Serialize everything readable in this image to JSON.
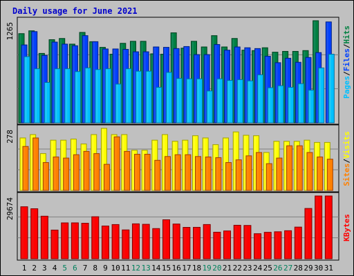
{
  "title": "Daily usage for June 2021",
  "colors": {
    "title": "#0000cc",
    "hits": "#008040",
    "hits_light": "#1c8a66",
    "hits_edge": "#004020",
    "files": "#0040ff",
    "files_light": "#2a58e8",
    "files_edge": "#002080",
    "pages": "#00c0ff",
    "pages_light": "#33ccee",
    "pages_edge": "#0070a0",
    "visits": "#ffff00",
    "visits_light": "#ffff40",
    "visits_edge": "#a0a000",
    "sites": "#ff8000",
    "sites_light": "#ff9010",
    "sites_edge": "#a04000",
    "kbytes": "#ff0000",
    "kbytes_light": "#ee1010",
    "kbytes_edge": "#800000",
    "weekend_day": "#00805c",
    "workday": "#000000",
    "panel_bg": "#c0c0c0",
    "grid": "#808080"
  },
  "days": [
    "1",
    "2",
    "3",
    "4",
    "5",
    "6",
    "7",
    "8",
    "9",
    "10",
    "11",
    "12",
    "13",
    "14",
    "15",
    "16",
    "17",
    "18",
    "19",
    "20",
    "21",
    "22",
    "23",
    "24",
    "25",
    "26",
    "27",
    "28",
    "29",
    "30",
    "31"
  ],
  "weekend_days": [
    "5",
    "6",
    "12",
    "13",
    "19",
    "20",
    "26",
    "27"
  ],
  "legend": {
    "usage_panel": [
      "Pages",
      "/",
      "Files",
      "/",
      "Hits"
    ],
    "sites_panel": [
      "Sites",
      "/",
      "Visits"
    ],
    "kbytes_panel": [
      "KBytes"
    ]
  },
  "chart_data": [
    {
      "type": "bar",
      "title": "Daily usage for June 2021",
      "panel": "hits-files-pages",
      "categories": [
        "1",
        "2",
        "3",
        "4",
        "5",
        "6",
        "7",
        "8",
        "9",
        "10",
        "11",
        "12",
        "13",
        "14",
        "15",
        "16",
        "17",
        "18",
        "19",
        "20",
        "21",
        "22",
        "23",
        "24",
        "25",
        "26",
        "27",
        "28",
        "29",
        "30",
        "31"
      ],
      "ymax_label": "1265",
      "ylim": [
        0,
        1265
      ],
      "grid": true,
      "series": [
        {
          "name": "Hits",
          "values": [
            1105,
            1140,
            860,
            1030,
            1045,
            975,
            1120,
            1005,
            935,
            850,
            985,
            1010,
            1010,
            855,
            850,
            1115,
            925,
            1010,
            940,
            1080,
            940,
            1045,
            900,
            895,
            930,
            875,
            885,
            885,
            895,
            1265,
            null
          ]
        },
        {
          "name": "Files",
          "values": [
            965,
            1130,
            835,
            1000,
            975,
            955,
            1080,
            1005,
            915,
            915,
            910,
            880,
            880,
            940,
            935,
            920,
            945,
            845,
            845,
            970,
            900,
            940,
            930,
            920,
            825,
            745,
            800,
            750,
            810,
            870,
            1250
          ]
        },
        {
          "name": "Pages",
          "values": [
            820,
            670,
            500,
            670,
            670,
            635,
            680,
            660,
            670,
            480,
            670,
            640,
            640,
            440,
            625,
            550,
            545,
            545,
            395,
            545,
            525,
            535,
            520,
            595,
            435,
            460,
            440,
            485,
            405,
            680,
            850
          ]
        }
      ]
    },
    {
      "type": "bar",
      "panel": "visits-sites",
      "categories": [
        "1",
        "2",
        "3",
        "4",
        "5",
        "6",
        "7",
        "8",
        "9",
        "10",
        "11",
        "12",
        "13",
        "14",
        "15",
        "16",
        "17",
        "18",
        "19",
        "20",
        "21",
        "22",
        "23",
        "24",
        "25",
        "26",
        "27",
        "28",
        "29",
        "30",
        "31"
      ],
      "ymax_label": "278",
      "ylim": [
        0,
        278
      ],
      "grid": true,
      "series": [
        {
          "name": "Visits",
          "values": [
            235,
            250,
            165,
            225,
            225,
            230,
            208,
            250,
            278,
            250,
            250,
            180,
            180,
            225,
            250,
            220,
            225,
            245,
            235,
            205,
            235,
            262,
            247,
            245,
            170,
            220,
            220,
            220,
            225,
            215,
            215
          ]
        },
        {
          "name": "Sites",
          "values": [
            197,
            235,
            125,
            150,
            145,
            160,
            175,
            165,
            117,
            240,
            175,
            162,
            162,
            135,
            152,
            160,
            160,
            152,
            150,
            147,
            125,
            137,
            155,
            170,
            120,
            145,
            200,
            200,
            170,
            150,
            140
          ]
        }
      ]
    },
    {
      "type": "bar",
      "panel": "kbytes",
      "categories": [
        "1",
        "2",
        "3",
        "4",
        "5",
        "6",
        "7",
        "8",
        "9",
        "10",
        "11",
        "12",
        "13",
        "14",
        "15",
        "16",
        "17",
        "18",
        "19",
        "20",
        "21",
        "22",
        "23",
        "24",
        "25",
        "26",
        "27",
        "28",
        "29",
        "30",
        "31"
      ],
      "ymax_label": "29674",
      "ylim": [
        0,
        29674
      ],
      "grid": true,
      "series": [
        {
          "name": "KBytes",
          "values": [
            24580,
            23645,
            20115,
            13560,
            16955,
            16965,
            16785,
            19865,
            15480,
            16165,
            13640,
            16505,
            16280,
            14270,
            18425,
            16420,
            14835,
            14855,
            16180,
            12550,
            13150,
            15835,
            15745,
            11845,
            12505,
            12765,
            13255,
            14965,
            23770,
            29674,
            29674
          ]
        }
      ]
    }
  ]
}
